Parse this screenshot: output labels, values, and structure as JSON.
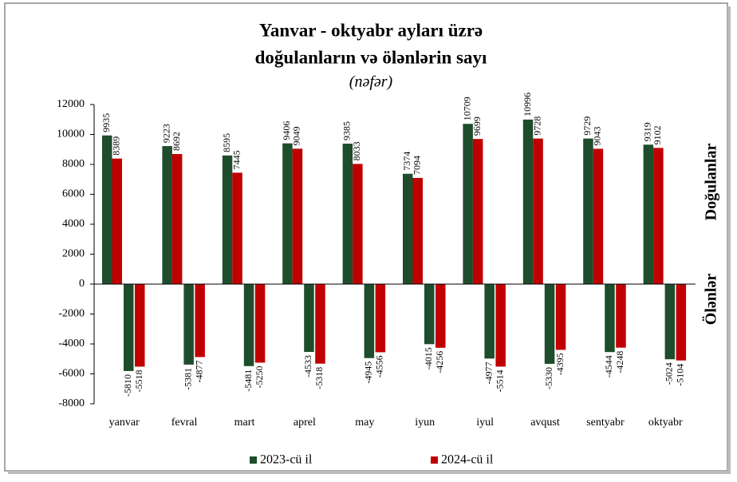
{
  "chart_data": {
    "type": "bar",
    "title": [
      "Yanvar - oktyabr ayları üzrə",
      "doğulanların və ölənlərin sayı"
    ],
    "subtitle": "(nəfər)",
    "side_labels": [
      "Doğulanlar",
      "Ölənlər"
    ],
    "categories": [
      "yanvar",
      "fevral",
      "mart",
      "aprel",
      "may",
      "iyun",
      "iyul",
      "avqust",
      "sentyabr",
      "oktyabr"
    ],
    "series": [
      {
        "name": "2023-cü il",
        "color": "#1e4d2b",
        "births": [
          9935,
          9223,
          8595,
          9406,
          9385,
          7374,
          10709,
          10996,
          9729,
          9319
        ],
        "deaths": [
          -5810,
          -5381,
          -5481,
          -4533,
          -4945,
          -4015,
          -4977,
          -5330,
          -4544,
          -5024
        ]
      },
      {
        "name": "2024-cü il",
        "color": "#c00000",
        "births": [
          8389,
          8692,
          7445,
          9049,
          8033,
          7094,
          9699,
          9728,
          9043,
          9102
        ],
        "deaths": [
          -5518,
          -4877,
          -5250,
          -5318,
          -4556,
          -4256,
          -5514,
          -4395,
          -4248,
          -5104
        ]
      }
    ],
    "ylim": [
      -8000,
      12000
    ],
    "yticks": [
      -8000,
      -6000,
      -4000,
      -2000,
      0,
      2000,
      4000,
      6000,
      8000,
      10000,
      12000
    ]
  }
}
